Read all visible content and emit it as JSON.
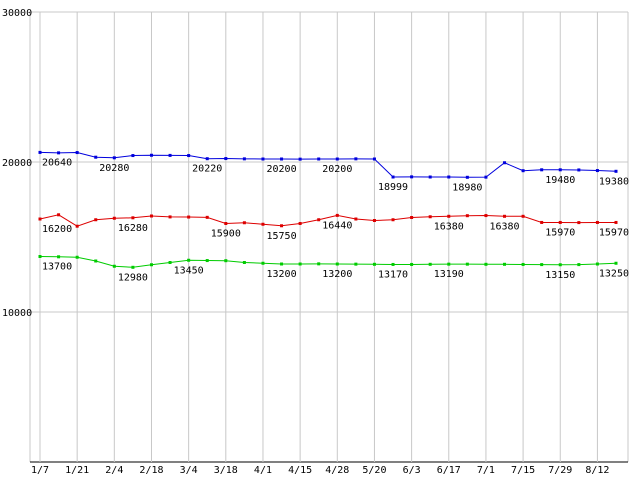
{
  "colors": {
    "background": "#ffffff",
    "grid": "#c8c8c8",
    "axis": "#000000",
    "text": "#000000",
    "series_blue": "#0000dd",
    "series_red": "#dd0000",
    "series_green": "#00cc00"
  },
  "chart_data": {
    "type": "line",
    "title": "",
    "xlabel": "",
    "ylabel": "",
    "ylim": [
      0,
      30000
    ],
    "grid": true,
    "legend": "none",
    "y_ticks": [
      {
        "value": 30000,
        "label": "30000"
      },
      {
        "value": 20000,
        "label": "20000"
      },
      {
        "value": 10000,
        "label": "10000"
      }
    ],
    "x_tick_labels": [
      "1/7",
      "1/21",
      "2/4",
      "2/18",
      "3/4",
      "3/18",
      "4/1",
      "4/15",
      "4/28",
      "5/20",
      "6/3",
      "6/17",
      "7/1",
      "7/15",
      "7/29",
      "8/12"
    ],
    "points_per_tick": 2,
    "series": [
      {
        "name": "series-blue",
        "color": "#0000dd",
        "values": [
          20640,
          20610,
          20630,
          20320,
          20280,
          20430,
          20450,
          20440,
          20430,
          20220,
          20230,
          20210,
          20200,
          20200,
          20190,
          20200,
          20200,
          20210,
          20200,
          18999,
          19010,
          19000,
          19000,
          18980,
          18990,
          19950,
          19420,
          19480,
          19480,
          19470,
          19430,
          19380
        ]
      },
      {
        "name": "series-red",
        "color": "#dd0000",
        "values": [
          16200,
          16480,
          15720,
          16150,
          16250,
          16280,
          16400,
          16340,
          16330,
          16310,
          15900,
          15950,
          15850,
          15750,
          15900,
          16150,
          16440,
          16200,
          16100,
          16150,
          16300,
          16350,
          16380,
          16420,
          16430,
          16380,
          16380,
          15970,
          15970,
          15960,
          15970,
          15970
        ]
      },
      {
        "name": "series-green",
        "color": "#00cc00",
        "values": [
          13700,
          13680,
          13650,
          13400,
          13050,
          12980,
          13150,
          13300,
          13450,
          13430,
          13420,
          13300,
          13250,
          13200,
          13200,
          13210,
          13200,
          13190,
          13180,
          13170,
          13170,
          13180,
          13190,
          13190,
          13180,
          13180,
          13170,
          13160,
          13150,
          13160,
          13200,
          13250
        ]
      }
    ],
    "point_labels": [
      {
        "series": 0,
        "index": 0,
        "text": "20640"
      },
      {
        "series": 0,
        "index": 4,
        "text": "20280"
      },
      {
        "series": 0,
        "index": 9,
        "text": "20220"
      },
      {
        "series": 0,
        "index": 13,
        "text": "20200"
      },
      {
        "series": 0,
        "index": 16,
        "text": "20200"
      },
      {
        "series": 0,
        "index": 19,
        "text": "18999"
      },
      {
        "series": 0,
        "index": 23,
        "text": "18980"
      },
      {
        "series": 0,
        "index": 28,
        "text": "19480"
      },
      {
        "series": 0,
        "index": 31,
        "text": "19380"
      },
      {
        "series": 1,
        "index": 0,
        "text": "16200"
      },
      {
        "series": 1,
        "index": 5,
        "text": "16280"
      },
      {
        "series": 1,
        "index": 10,
        "text": "15900"
      },
      {
        "series": 1,
        "index": 13,
        "text": "15750"
      },
      {
        "series": 1,
        "index": 16,
        "text": "16440"
      },
      {
        "series": 1,
        "index": 22,
        "text": "16380"
      },
      {
        "series": 1,
        "index": 25,
        "text": "16380"
      },
      {
        "series": 1,
        "index": 28,
        "text": "15970"
      },
      {
        "series": 1,
        "index": 31,
        "text": "15970"
      },
      {
        "series": 2,
        "index": 0,
        "text": "13700"
      },
      {
        "series": 2,
        "index": 5,
        "text": "12980"
      },
      {
        "series": 2,
        "index": 8,
        "text": "13450"
      },
      {
        "series": 2,
        "index": 13,
        "text": "13200"
      },
      {
        "series": 2,
        "index": 16,
        "text": "13200"
      },
      {
        "series": 2,
        "index": 19,
        "text": "13170"
      },
      {
        "series": 2,
        "index": 22,
        "text": "13190"
      },
      {
        "series": 2,
        "index": 28,
        "text": "13150"
      },
      {
        "series": 2,
        "index": 31,
        "text": "13250"
      }
    ]
  }
}
